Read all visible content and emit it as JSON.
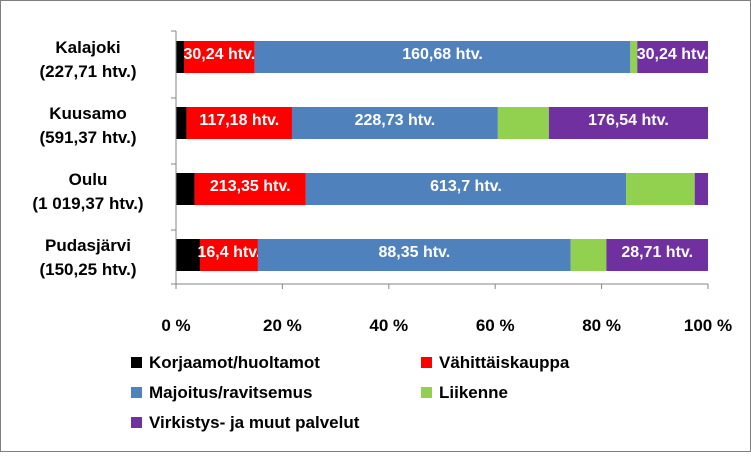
{
  "chart_data": {
    "type": "bar",
    "orientation": "horizontal",
    "stacked": "percent",
    "categories": [
      {
        "name": "Kalajoki",
        "total": "(227,71 htv.)"
      },
      {
        "name": "Kuusamo",
        "total": "(591,37 htv.)"
      },
      {
        "name": "Oulu",
        "total": "(1 019,37 htv.)"
      },
      {
        "name": "Pudasjärvi",
        "total": "(150,25 htv.)"
      }
    ],
    "series": [
      {
        "name": "Korjaamot/huoltamot",
        "color": "#000000",
        "values": [
          1.5,
          2.0,
          3.5,
          4.5
        ],
        "labels": [
          "",
          "",
          "",
          ""
        ]
      },
      {
        "name": "Vähittäiskauppa",
        "color": "#ff0000",
        "values": [
          13.3,
          19.8,
          20.9,
          10.9
        ],
        "labels": [
          "30,24 htv.",
          "117,18 htv.",
          "213,35 htv.",
          "16,4 htv."
        ]
      },
      {
        "name": "Majoitus/ravitsemus",
        "color": "#4f81bd",
        "values": [
          70.6,
          38.7,
          60.2,
          58.8
        ],
        "labels": [
          "160,68 htv.",
          "228,73 htv.",
          "613,7 htv.",
          "88,35 htv."
        ]
      },
      {
        "name": "Liikenne",
        "color": "#92d050",
        "values": [
          1.3,
          9.6,
          12.9,
          6.7
        ],
        "labels": [
          "",
          "",
          "",
          ""
        ]
      },
      {
        "name": "Virkistys- ja muut palvelut",
        "color": "#7030a0",
        "values": [
          13.3,
          29.9,
          2.5,
          19.1
        ],
        "labels": [
          "30,24 htv.",
          "176,54 htv.",
          "",
          "28,71 htv."
        ]
      }
    ],
    "xticks": [
      "0 %",
      "20 %",
      "40 %",
      "60 %",
      "80 %",
      "100 %"
    ],
    "xlim": [
      0,
      100
    ],
    "grid": false,
    "legend_position": "bottom"
  }
}
